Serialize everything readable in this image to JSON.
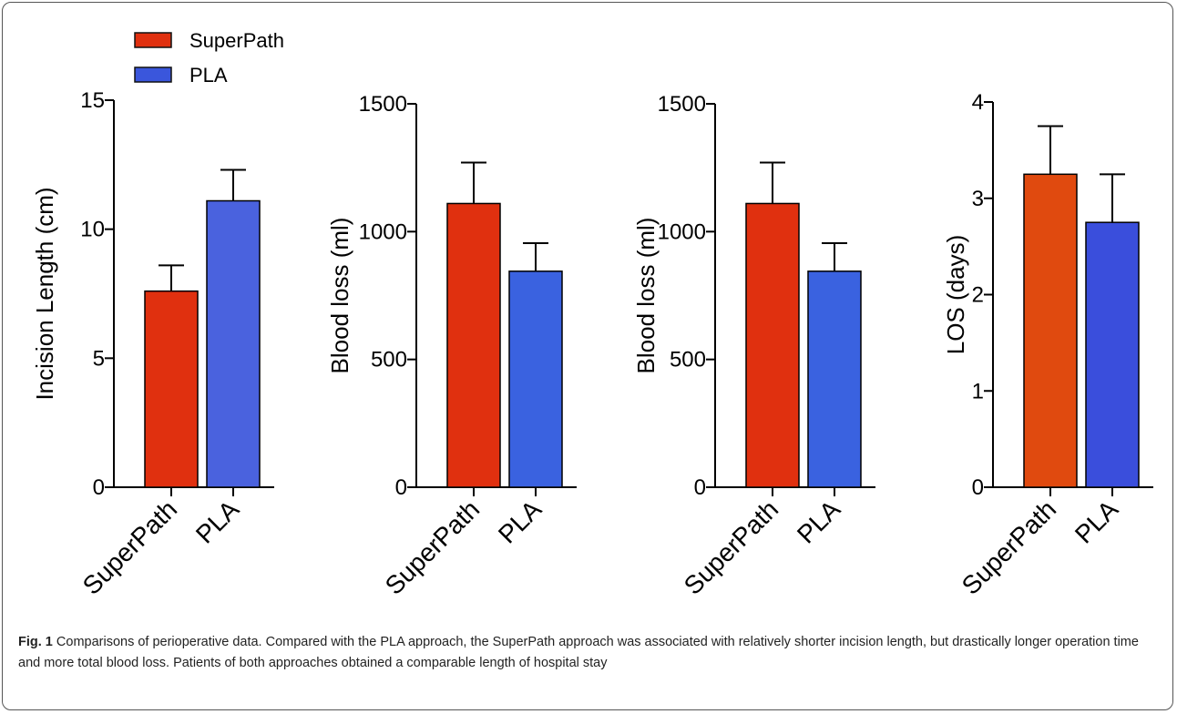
{
  "legend": {
    "items": [
      {
        "label": "SuperPath",
        "color": "#e0300f"
      },
      {
        "label": "PLA",
        "color": "#3a56dc"
      }
    ]
  },
  "chart_data": [
    {
      "type": "bar",
      "ylabel": "Incision Length (cm)",
      "ylim": [
        0,
        15
      ],
      "yticks": [
        0,
        5,
        10,
        15
      ],
      "categories": [
        "SuperPath",
        "PLA"
      ],
      "values": [
        7.6,
        11.1
      ],
      "error": [
        1.0,
        1.2
      ],
      "colors": [
        "#e0300f",
        "#4a62de"
      ]
    },
    {
      "type": "bar",
      "ylabel": "Blood loss (ml)",
      "ylim": [
        0,
        1500
      ],
      "yticks": [
        0,
        500,
        1000,
        1500
      ],
      "categories": [
        "SuperPath",
        "PLA"
      ],
      "values": [
        1110,
        845
      ],
      "error": [
        160,
        110
      ],
      "colors": [
        "#e0300f",
        "#3a62e0"
      ]
    },
    {
      "type": "bar",
      "ylabel": "Blood loss (ml)",
      "ylim": [
        0,
        1500
      ],
      "yticks": [
        0,
        500,
        1000,
        1500
      ],
      "categories": [
        "SuperPath",
        "PLA"
      ],
      "values": [
        1110,
        845
      ],
      "error": [
        160,
        110
      ],
      "colors": [
        "#e0300f",
        "#3a62e0"
      ]
    },
    {
      "type": "bar",
      "ylabel": "LOS (days)",
      "ylim": [
        0,
        4
      ],
      "yticks": [
        0,
        1,
        2,
        3,
        4
      ],
      "categories": [
        "SuperPath",
        "PLA"
      ],
      "values": [
        3.25,
        2.75
      ],
      "error": [
        0.5,
        0.5
      ],
      "colors": [
        "#e04a0f",
        "#3a4edc"
      ]
    }
  ],
  "caption": {
    "lead": "Fig. 1",
    "text": " Comparisons of perioperative data. Compared with the PLA approach, the SuperPath approach was associated with relatively shorter incision length, but drastically longer operation time and more total blood loss. Patients of both approaches obtained a comparable length of hospital stay"
  }
}
